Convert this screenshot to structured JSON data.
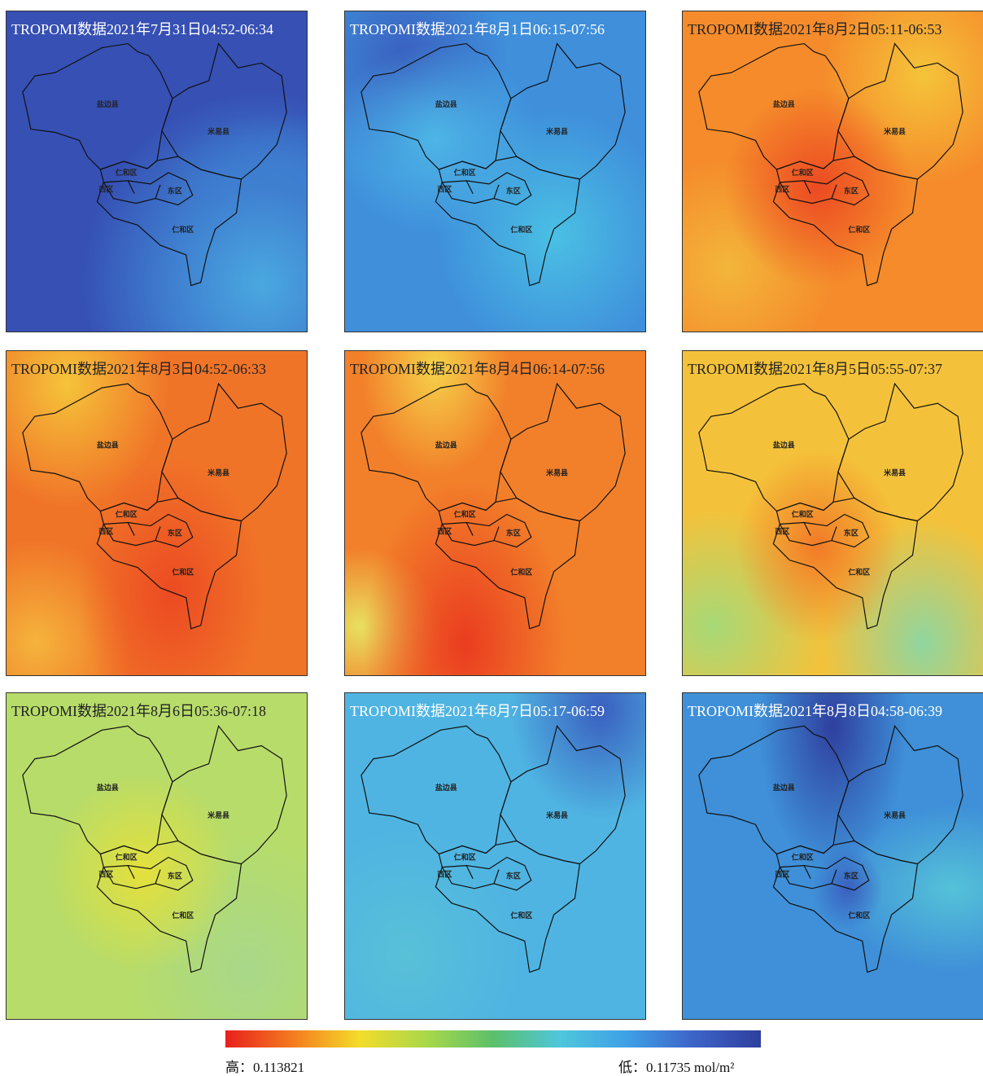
{
  "panels": [
    {
      "title": "TROPOMI数据2021年7月31日04:52-06:34"
    },
    {
      "title": "TROPOMI数据2021年8月1日06:15-07:56"
    },
    {
      "title": "TROPOMI数据2021年8月2日05:11-06:53"
    },
    {
      "title": "TROPOMI数据2021年8月3日04:52-06:33"
    },
    {
      "title": "TROPOMI数据2021年8月4日06:14-07:56"
    },
    {
      "title": "TROPOMI数据2021年8月5日05:55-07:37"
    },
    {
      "title": "TROPOMI数据2021年8月6日05:36-07:18"
    },
    {
      "title": "TROPOMI数据2021年8月7日05:17-06:59"
    },
    {
      "title": "TROPOMI数据2021年8月8日04:58-06:39"
    }
  ],
  "regions": [
    {
      "label": "盐边县"
    },
    {
      "label": "米易县"
    },
    {
      "label": "仁和区"
    },
    {
      "label": "西区"
    },
    {
      "label": "东区"
    },
    {
      "label": "仁和区"
    }
  ],
  "legend": {
    "high": "高：0.113821",
    "low": "低：0.11735 mol/m²"
  }
}
